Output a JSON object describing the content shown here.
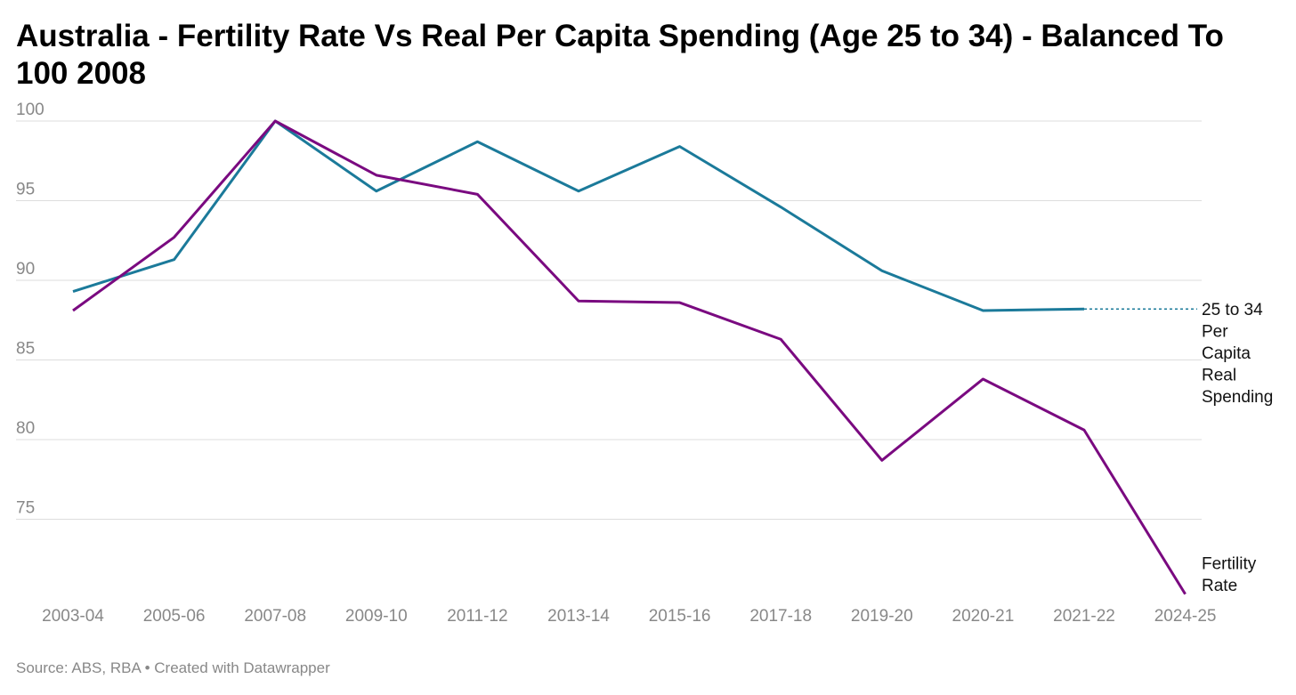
{
  "chart_data": {
    "type": "line",
    "title": "Australia - Fertility Rate Vs Real Per Capita Spending (Age 25 to 34) - Balanced To 100 2008",
    "xlabel": "",
    "ylabel": "",
    "categories": [
      "2003-04",
      "2005-06",
      "2007-08",
      "2009-10",
      "2011-12",
      "2013-14",
      "2015-16",
      "2017-18",
      "2019-20",
      "2020-21",
      "2021-22",
      "2024-25"
    ],
    "ylim": [
      69,
      100
    ],
    "yticks": [
      100,
      95,
      90,
      85,
      80,
      75
    ],
    "grid": true,
    "series": [
      {
        "name": "25 to 34 Per Capita Real Spending",
        "label_lines": [
          "25 to 34",
          "Per",
          "Capita",
          "Real",
          "Spending"
        ],
        "color": "#1b7a9a",
        "values": [
          89.3,
          91.3,
          100,
          95.6,
          98.7,
          95.6,
          98.4,
          94.6,
          90.6,
          88.1,
          88.2,
          null
        ]
      },
      {
        "name": "Fertility Rate",
        "label_lines": [
          "Fertility",
          "Rate"
        ],
        "color": "#7a0a80",
        "values": [
          88.1,
          92.7,
          100,
          96.6,
          95.4,
          88.7,
          88.6,
          86.3,
          78.7,
          83.8,
          80.6,
          70.3
        ]
      }
    ],
    "legend": "direct labels right"
  },
  "source": "Source: ABS, RBA • Created with Datawrapper"
}
